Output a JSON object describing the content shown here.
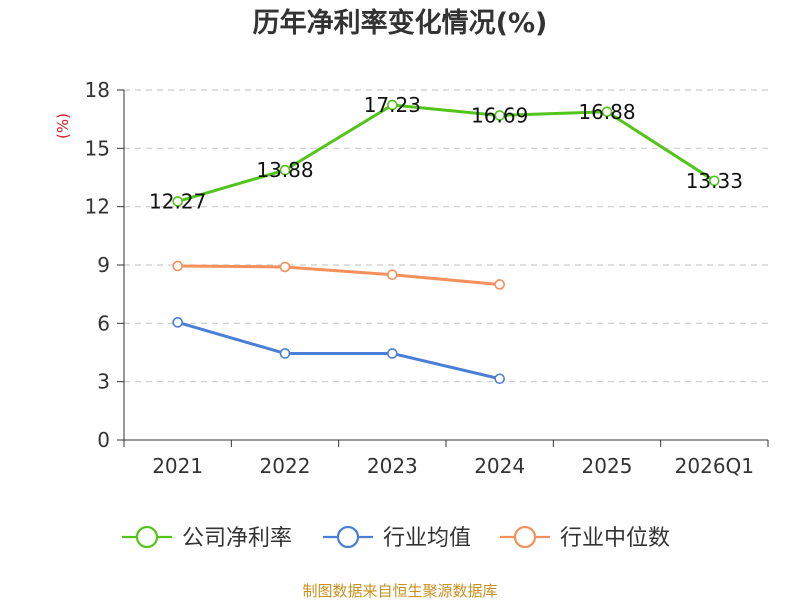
{
  "chart_data": {
    "type": "line",
    "title": "历年净利率变化情况(%)",
    "ylabel": "(%)",
    "xlabel": "",
    "categories": [
      "2021",
      "2022",
      "2023",
      "2024",
      "2025",
      "2026Q1"
    ],
    "ylim": [
      0,
      18
    ],
    "yticks": [
      0,
      3,
      6,
      9,
      12,
      15,
      18
    ],
    "grid": true,
    "legend_position": "bottom",
    "series": [
      {
        "name": "公司净利率",
        "color": "#52c41a",
        "values": [
          12.27,
          13.88,
          17.23,
          16.69,
          16.88,
          13.33
        ],
        "labels": [
          "12.27",
          "13.88",
          "17.23",
          "16.69",
          "16.88",
          "13.33"
        ]
      },
      {
        "name": "行业均值",
        "color": "#4a7fd8",
        "values": [
          6.05,
          4.45,
          4.45,
          3.15,
          null,
          null
        ]
      },
      {
        "name": "行业中位数",
        "color": "#f5905c",
        "values": [
          8.95,
          8.9,
          8.5,
          8.0,
          null,
          null
        ]
      }
    ]
  },
  "source": "制图数据来自恒生聚源数据库"
}
